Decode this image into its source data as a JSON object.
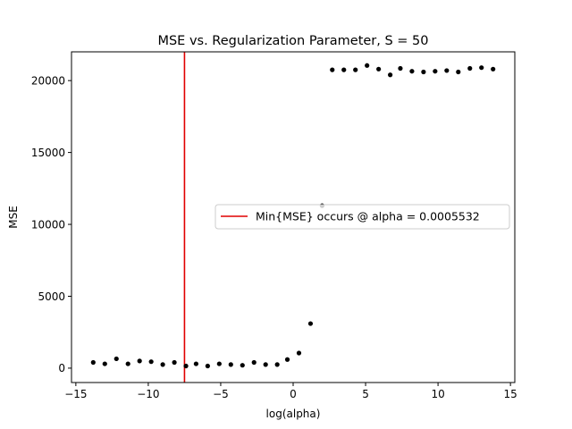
{
  "chart_data": {
    "type": "scatter",
    "title": "MSE vs. Regularization Parameter, S = 50",
    "xlabel": "log(alpha)",
    "ylabel": "MSE",
    "xlim": [
      -15.3,
      15.3
    ],
    "ylim": [
      -1000,
      22000
    ],
    "xticks": [
      -15,
      -10,
      -5,
      0,
      5,
      10,
      15
    ],
    "yticks": [
      0,
      5000,
      10000,
      15000,
      20000
    ],
    "grid": false,
    "legend_position": "center-right",
    "colors": {
      "points": "#000000",
      "vline": "#e00000"
    },
    "points": {
      "x": [
        -13.8,
        -13.0,
        -12.2,
        -11.4,
        -10.6,
        -9.8,
        -9.0,
        -8.2,
        -7.4,
        -6.7,
        -5.9,
        -5.1,
        -4.3,
        -3.5,
        -2.7,
        -1.9,
        -1.1,
        -0.4,
        0.4,
        1.2,
        2.0,
        2.7,
        3.5,
        4.3,
        5.1,
        5.9,
        6.7,
        7.4,
        8.2,
        9.0,
        9.8,
        10.6,
        11.4,
        12.2,
        13.0,
        13.8
      ],
      "y": [
        400,
        300,
        650,
        300,
        500,
        450,
        250,
        400,
        150,
        300,
        150,
        300,
        250,
        200,
        400,
        250,
        250,
        600,
        1050,
        3100,
        11300,
        20750,
        20750,
        20750,
        21050,
        20800,
        20400,
        20850,
        20650,
        20600,
        20650,
        20700,
        20600,
        20850,
        20900,
        20800
      ]
    },
    "vline": {
      "x": -7.5,
      "label": "Min{MSE} occurs @ alpha = 0.0005532"
    }
  }
}
